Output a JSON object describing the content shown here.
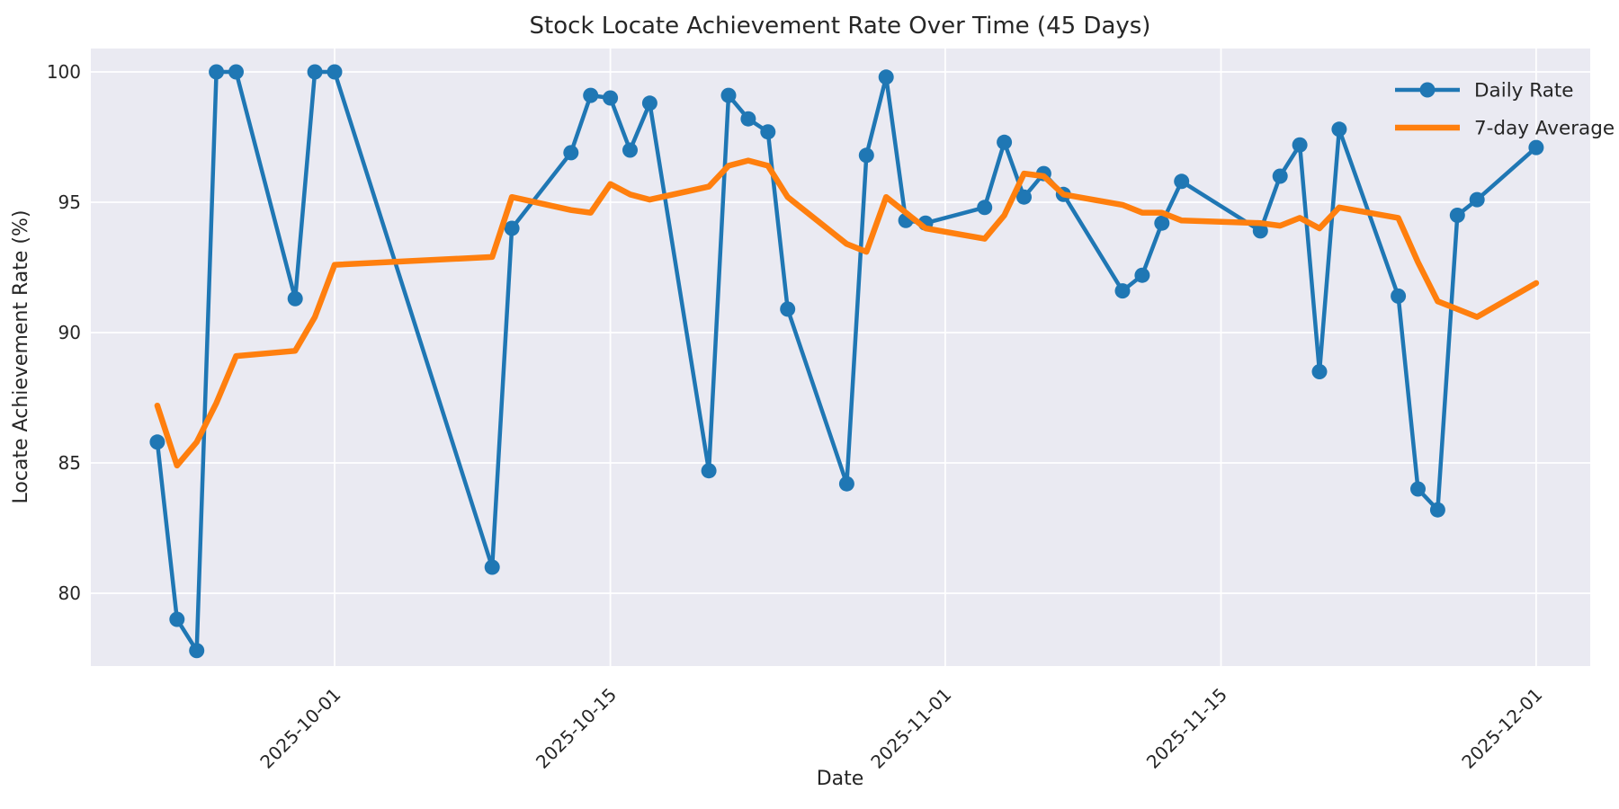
{
  "figure": {
    "background": "#ffffff",
    "plot_background": "#eaeaf2",
    "grid_color": "#ffffff",
    "text_color": "#262626"
  },
  "chart_data": {
    "type": "line",
    "title": "Stock Locate Achievement Rate Over Time (45 Days)",
    "xlabel": "Date",
    "ylabel": "Locate Achievement Rate (%)",
    "ylim": [
      77.2,
      100.9
    ],
    "yticks": [
      80,
      85,
      90,
      95,
      100
    ],
    "xticks": [
      "2025-10-01",
      "2025-10-15",
      "2025-11-01",
      "2025-11-15",
      "2025-12-01"
    ],
    "grid": true,
    "legend_position": "upper right",
    "x": [
      "2025-09-22",
      "2025-09-23",
      "2025-09-24",
      "2025-09-25",
      "2025-09-26",
      "2025-09-29",
      "2025-09-30",
      "2025-10-01",
      "2025-10-09",
      "2025-10-10",
      "2025-10-13",
      "2025-10-14",
      "2025-10-15",
      "2025-10-16",
      "2025-10-17",
      "2025-10-20",
      "2025-10-21",
      "2025-10-22",
      "2025-10-23",
      "2025-10-24",
      "2025-10-27",
      "2025-10-28",
      "2025-10-29",
      "2025-10-30",
      "2025-10-31",
      "2025-11-03",
      "2025-11-04",
      "2025-11-05",
      "2025-11-06",
      "2025-11-07",
      "2025-11-10",
      "2025-11-11",
      "2025-11-12",
      "2025-11-13",
      "2025-11-17",
      "2025-11-18",
      "2025-11-19",
      "2025-11-20",
      "2025-11-21",
      "2025-11-24",
      "2025-11-25",
      "2025-11-26",
      "2025-11-27",
      "2025-11-28",
      "2025-12-01"
    ],
    "series": [
      {
        "name": "Daily Rate",
        "color": "#1f77b4",
        "marker": "circle",
        "marker_size": 8.5,
        "line_width": 4.5,
        "values": [
          85.8,
          79.0,
          77.8,
          100.0,
          100.0,
          91.3,
          100.0,
          100.0,
          81.0,
          94.0,
          96.9,
          99.1,
          99.0,
          97.0,
          98.8,
          84.7,
          99.1,
          98.2,
          97.7,
          90.9,
          84.2,
          96.8,
          99.8,
          94.3,
          94.2,
          94.8,
          97.3,
          95.2,
          96.1,
          95.3,
          91.6,
          92.2,
          94.2,
          95.8,
          93.9,
          96.0,
          97.2,
          88.5,
          97.8,
          91.4,
          84.0,
          83.2,
          94.5,
          95.1,
          97.1
        ]
      },
      {
        "name": "7-day Average",
        "color": "#ff7f0e",
        "marker": "none",
        "marker_size": 0,
        "line_width": 6.5,
        "values": [
          87.2,
          84.9,
          85.8,
          87.3,
          89.1,
          89.3,
          90.6,
          92.6,
          92.9,
          95.2,
          94.7,
          94.6,
          95.7,
          95.3,
          95.1,
          95.6,
          96.4,
          96.6,
          96.4,
          95.2,
          93.4,
          93.1,
          95.2,
          94.6,
          94.0,
          93.6,
          94.5,
          96.1,
          96.0,
          95.3,
          94.9,
          94.6,
          94.6,
          94.3,
          94.2,
          94.1,
          94.4,
          94.0,
          94.8,
          94.4,
          92.7,
          91.2,
          90.9,
          90.6,
          91.9
        ]
      }
    ]
  }
}
